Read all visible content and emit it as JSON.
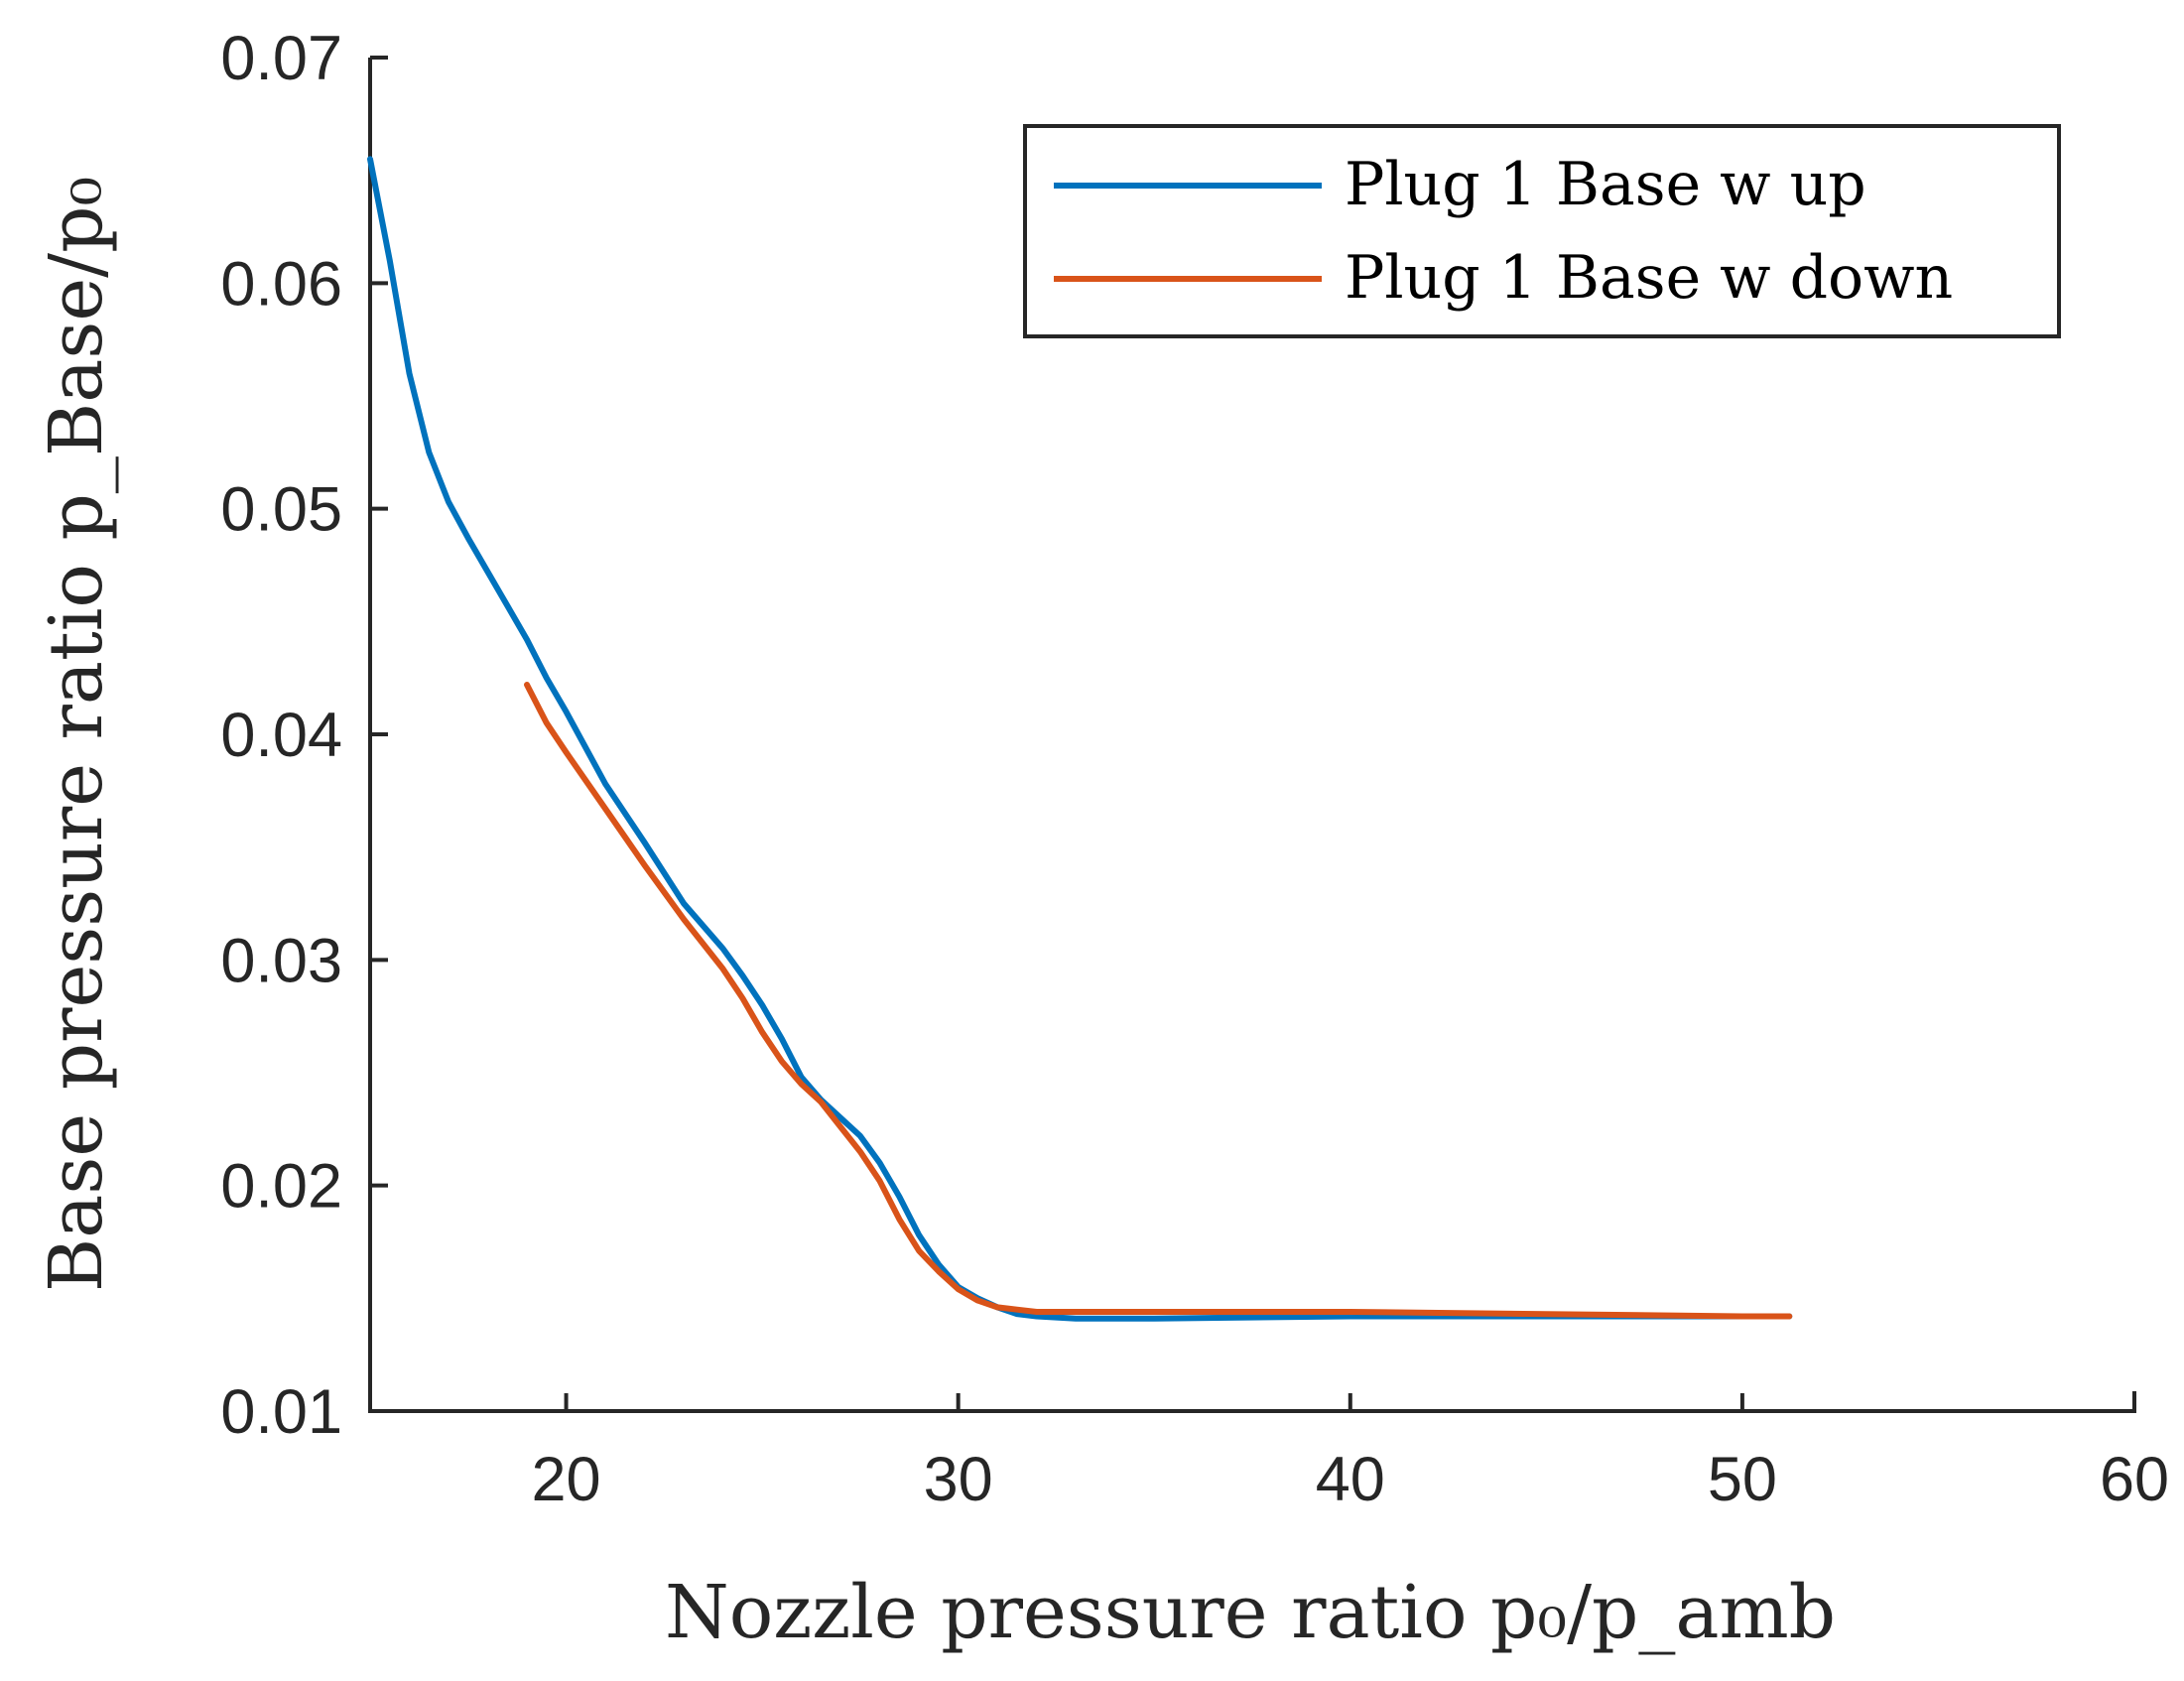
{
  "chart_data": {
    "type": "line",
    "xlabel": "Nozzle pressure ratio p₀/p_amb",
    "ylabel": "Base pressure ratio p_Base/p₀",
    "xlim": [
      15,
      60
    ],
    "ylim": [
      0.01,
      0.07
    ],
    "x_ticks": [
      "20",
      "30",
      "40",
      "50",
      "60"
    ],
    "x_tick_values": [
      20,
      30,
      40,
      50,
      60
    ],
    "y_ticks": [
      "0.01",
      "0.02",
      "0.03",
      "0.04",
      "0.05",
      "0.06",
      "0.07"
    ],
    "y_tick_values": [
      0.01,
      0.02,
      0.03,
      0.04,
      0.05,
      0.06,
      0.07
    ],
    "legend_position": "top-right",
    "series": [
      {
        "name": "Plug 1 Base w up",
        "color": "#0072BD",
        "x": [
          15.0,
          15.5,
          16.0,
          16.5,
          17.0,
          17.5,
          18.0,
          18.5,
          19.0,
          19.5,
          20.0,
          21.0,
          22.0,
          23.0,
          24.0,
          24.5,
          25.0,
          25.5,
          26.0,
          26.5,
          27.0,
          27.5,
          28.0,
          28.5,
          29.0,
          29.5,
          30.0,
          30.5,
          31.0,
          31.5,
          32.0,
          33.0,
          35.0,
          40.0,
          45.0,
          50.0,
          51.2
        ],
        "y": [
          0.0655,
          0.061,
          0.056,
          0.0525,
          0.0503,
          0.0487,
          0.0472,
          0.0457,
          0.0442,
          0.0425,
          0.041,
          0.0378,
          0.0352,
          0.0325,
          0.0305,
          0.0293,
          0.028,
          0.0265,
          0.0248,
          0.0238,
          0.023,
          0.0222,
          0.021,
          0.0195,
          0.0178,
          0.0165,
          0.0155,
          0.015,
          0.0146,
          0.0143,
          0.0142,
          0.0141,
          0.0141,
          0.0142,
          0.0142,
          0.0142,
          0.0142
        ]
      },
      {
        "name": "Plug 1 Base w down",
        "color": "#D95319",
        "x": [
          19.0,
          19.5,
          20.0,
          21.0,
          22.0,
          23.0,
          24.0,
          24.5,
          25.0,
          25.5,
          26.0,
          26.5,
          27.0,
          27.5,
          28.0,
          28.5,
          29.0,
          29.5,
          30.0,
          30.5,
          31.0,
          31.5,
          32.0,
          35.0,
          40.0,
          45.0,
          50.0,
          51.2
        ],
        "y": [
          0.0422,
          0.0405,
          0.0392,
          0.0367,
          0.0342,
          0.0318,
          0.0296,
          0.0283,
          0.0268,
          0.0255,
          0.0245,
          0.0237,
          0.0226,
          0.0215,
          0.0202,
          0.0185,
          0.0171,
          0.0162,
          0.0154,
          0.0149,
          0.0146,
          0.0145,
          0.0144,
          0.0144,
          0.0144,
          0.0143,
          0.0142,
          0.0142
        ]
      }
    ]
  }
}
